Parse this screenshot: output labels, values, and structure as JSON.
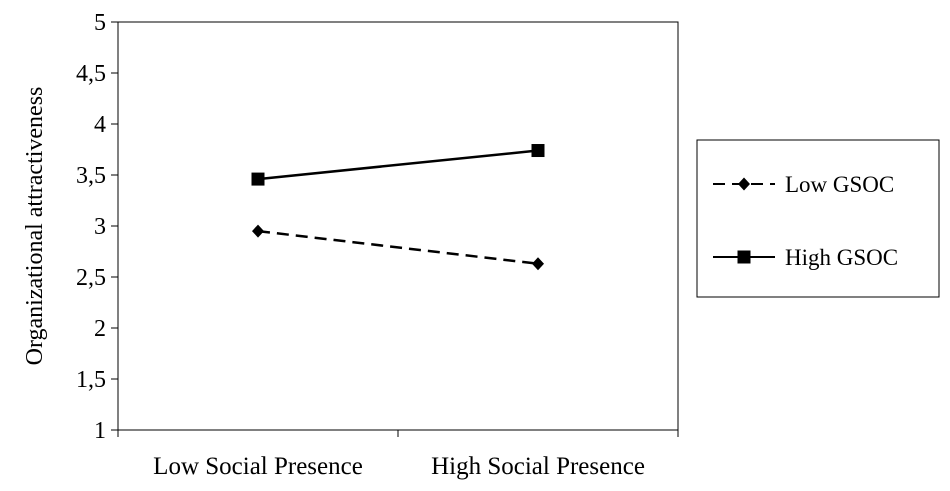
{
  "chart_data": {
    "type": "line",
    "title": "",
    "xlabel": "",
    "ylabel": "Organizational attractiveness",
    "categories": [
      "Low Social Presence",
      "High Social Presence"
    ],
    "yticks": [
      "1",
      "1,5",
      "2",
      "2,5",
      "3",
      "3,5",
      "4",
      "4,5",
      "5"
    ],
    "ylim": [
      1,
      5
    ],
    "grid": false,
    "legend_position": "right",
    "series": [
      {
        "name": "Low GSOC",
        "values": [
          2.95,
          2.63
        ],
        "line_style": "dashed",
        "marker": "diamond",
        "color": "#000000"
      },
      {
        "name": "High GSOC",
        "values": [
          3.46,
          3.74
        ],
        "line_style": "solid",
        "marker": "square",
        "color": "#000000"
      }
    ]
  }
}
